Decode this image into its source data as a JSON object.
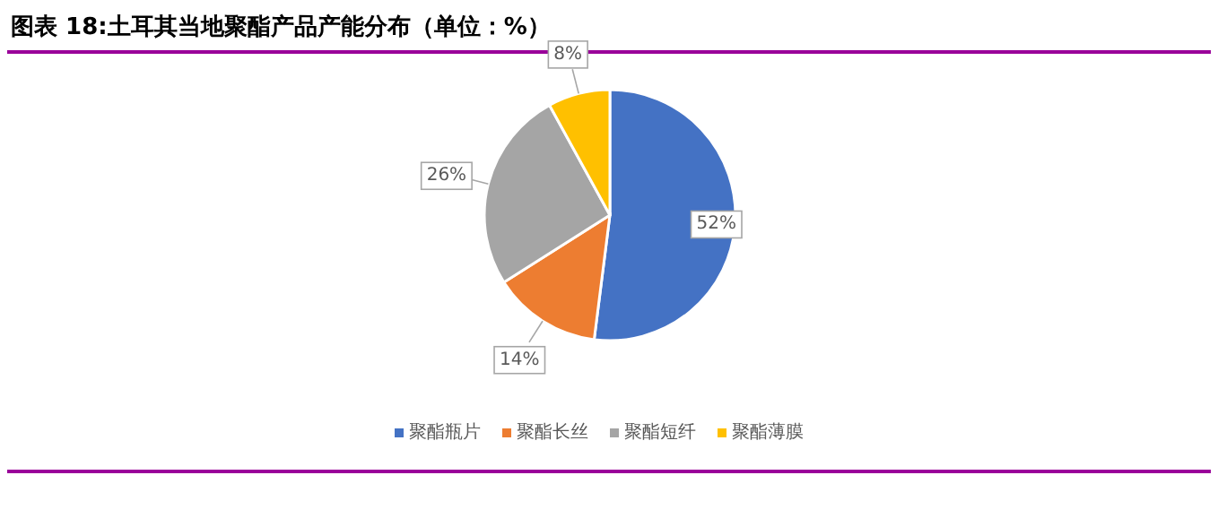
{
  "chart_data": {
    "type": "pie",
    "title": "图表 18:土耳其当地聚酯产品产能分布（单位：%）",
    "categories": [
      "聚酯瓶片",
      "聚酯长丝",
      "聚酯短纤",
      "聚酯薄膜"
    ],
    "values": [
      52,
      14,
      26,
      8
    ],
    "colors": [
      "#4472c4",
      "#ed7d31",
      "#a5a5a5",
      "#ffc000"
    ],
    "value_labels": [
      "52%",
      "14%",
      "26%",
      "8%"
    ],
    "legend": "bottom"
  }
}
